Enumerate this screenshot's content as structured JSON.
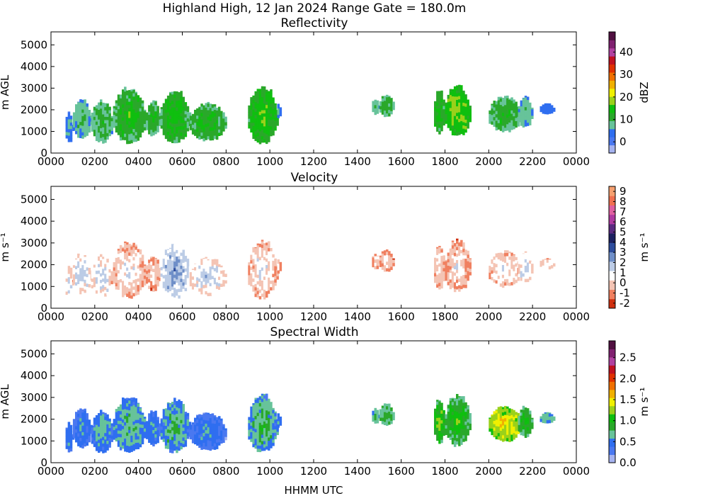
{
  "figure": {
    "title": "Highland High, 12 Jan 2024 Range Gate = 180.0m",
    "xlabel": "HHMM UTC"
  },
  "chart_data": [
    {
      "type": "heatmap",
      "title": "Reflectivity",
      "ylabel": "m AGL",
      "xticks": [
        "0000",
        "0200",
        "0400",
        "0600",
        "0800",
        "1000",
        "1200",
        "1400",
        "1600",
        "1800",
        "2000",
        "2200",
        "0000"
      ],
      "yticks": [
        "0",
        "1000",
        "2000",
        "3000",
        "4000",
        "5000"
      ],
      "ylim": [
        0,
        5600
      ],
      "colorbar": {
        "label": "dBZ",
        "range": [
          -5,
          49
        ],
        "ticks": [
          "0",
          "10",
          "20",
          "30",
          "40"
        ],
        "tick_values": [
          0,
          10,
          20,
          30,
          40
        ],
        "colors": [
          "#a6b3f0",
          "#4a78f0",
          "#2f6ef0",
          "#67c39a",
          "#2aa82a",
          "#0fbf0f",
          "#9ad11a",
          "#f0f000",
          "#f0b000",
          "#f07000",
          "#e03000",
          "#c01020",
          "#b040a0",
          "#802070",
          "#501040"
        ]
      },
      "cells": [
        {
          "t0": 40,
          "t1": 100,
          "h0": 500,
          "h1": 1900,
          "v": 4,
          "d": 7
        },
        {
          "t0": 100,
          "t1": 150,
          "h0": 700,
          "h1": 2500,
          "v": 6,
          "d": 8
        },
        {
          "t0": 150,
          "t1": 250,
          "h0": 500,
          "h1": 2400,
          "v": 8,
          "d": 9
        },
        {
          "t0": 250,
          "t1": 380,
          "h0": 500,
          "h1": 3000,
          "v": 10,
          "d": 10
        },
        {
          "t0": 380,
          "t1": 460,
          "h0": 800,
          "h1": 2400,
          "v": 9,
          "d": 9
        },
        {
          "t0": 460,
          "t1": 620,
          "h0": 500,
          "h1": 2900,
          "v": 11,
          "d": 10
        },
        {
          "t0": 620,
          "t1": 760,
          "h0": 600,
          "h1": 2300,
          "v": 10,
          "d": 9
        },
        {
          "t0": 860,
          "t1": 980,
          "h0": 500,
          "h1": 3100,
          "v": 12,
          "d": 10
        },
        {
          "t0": 980,
          "t1": 1030,
          "h0": 1600,
          "h1": 2300,
          "v": 4,
          "d": 5
        },
        {
          "t0": 1440,
          "t1": 1460,
          "h0": 1800,
          "h1": 2500,
          "v": 7,
          "d": 4
        },
        {
          "t0": 1500,
          "t1": 1540,
          "h0": 1700,
          "h1": 2700,
          "v": 9,
          "d": 5
        },
        {
          "t0": 1580,
          "t1": 1610,
          "h0": 1600,
          "h1": 2700,
          "v": 9,
          "d": 5
        },
        {
          "t0": 1730,
          "t1": 1800,
          "h0": 900,
          "h1": 2900,
          "v": 11,
          "d": 9
        },
        {
          "t0": 1800,
          "t1": 1910,
          "h0": 800,
          "h1": 3100,
          "v": 14,
          "d": 10
        },
        {
          "t0": 2000,
          "t1": 2090,
          "h0": 1000,
          "h1": 2600,
          "v": 9,
          "d": 9
        },
        {
          "t0": 2120,
          "t1": 2200,
          "h0": 1200,
          "h1": 2600,
          "v": 6,
          "d": 6
        },
        {
          "t0": 2220,
          "t1": 2260,
          "h0": 1800,
          "h1": 2300,
          "v": 4,
          "d": 3
        }
      ]
    },
    {
      "type": "heatmap",
      "title": "Velocity",
      "ylabel": "m s⁻¹",
      "xticks": [
        "0000",
        "0200",
        "0400",
        "0600",
        "0800",
        "1000",
        "1200",
        "1400",
        "1600",
        "1800",
        "2000",
        "2200",
        "0000"
      ],
      "yticks": [
        "0",
        "1000",
        "2000",
        "3000",
        "4000",
        "5000"
      ],
      "ylim": [
        0,
        5600
      ],
      "colorbar": {
        "label": "m s⁻¹",
        "range": [
          -2.5,
          9.5
        ],
        "ticks": [
          "-2",
          "-1",
          "0",
          "1",
          "2",
          "3",
          "4",
          "5",
          "6",
          "7",
          "8",
          "9"
        ],
        "tick_values": [
          -2,
          -1,
          0,
          1,
          2,
          3,
          4,
          5,
          6,
          7,
          8,
          9
        ],
        "colors": [
          "#d03010",
          "#f08060",
          "#f4c4b4",
          "#ffffff",
          "#bccce6",
          "#6f8fc8",
          "#2d4c9c",
          "#1c2060",
          "#5a2a80",
          "#b03aa0",
          "#e060a0",
          "#f07050",
          "#f5a070"
        ]
      },
      "cells": [
        {
          "t0": 40,
          "t1": 100,
          "h0": 500,
          "h1": 1900,
          "v": 0.3,
          "d": 3
        },
        {
          "t0": 100,
          "t1": 150,
          "h0": 700,
          "h1": 2500,
          "v": 0.5,
          "d": 3
        },
        {
          "t0": 150,
          "t1": 250,
          "h0": 500,
          "h1": 2400,
          "v": 0.2,
          "d": 3
        },
        {
          "t0": 250,
          "t1": 380,
          "h0": 500,
          "h1": 3000,
          "v": -0.4,
          "d": 3
        },
        {
          "t0": 380,
          "t1": 460,
          "h0": 800,
          "h1": 2400,
          "v": -0.8,
          "d": 3
        },
        {
          "t0": 460,
          "t1": 620,
          "h0": 500,
          "h1": 2900,
          "v": 1.2,
          "d": 3
        },
        {
          "t0": 620,
          "t1": 760,
          "h0": 600,
          "h1": 2300,
          "v": 0.2,
          "d": 3
        },
        {
          "t0": 860,
          "t1": 980,
          "h0": 500,
          "h1": 3100,
          "v": -0.3,
          "d": 3
        },
        {
          "t0": 980,
          "t1": 1030,
          "h0": 1600,
          "h1": 2300,
          "v": -0.6,
          "d": 3
        },
        {
          "t0": 1440,
          "t1": 1460,
          "h0": 1800,
          "h1": 2500,
          "v": -0.6,
          "d": 3
        },
        {
          "t0": 1500,
          "t1": 1540,
          "h0": 1700,
          "h1": 2700,
          "v": -0.8,
          "d": 3
        },
        {
          "t0": 1580,
          "t1": 1610,
          "h0": 1600,
          "h1": 2700,
          "v": -0.7,
          "d": 3
        },
        {
          "t0": 1730,
          "t1": 1800,
          "h0": 900,
          "h1": 2900,
          "v": -0.5,
          "d": 3
        },
        {
          "t0": 1800,
          "t1": 1910,
          "h0": 800,
          "h1": 3100,
          "v": -0.6,
          "d": 3
        },
        {
          "t0": 2000,
          "t1": 2090,
          "h0": 1000,
          "h1": 2600,
          "v": -0.3,
          "d": 3
        },
        {
          "t0": 2120,
          "t1": 2200,
          "h0": 1200,
          "h1": 2600,
          "v": 0.2,
          "d": 3
        },
        {
          "t0": 2220,
          "t1": 2260,
          "h0": 1800,
          "h1": 2300,
          "v": 0.1,
          "d": 3
        }
      ]
    },
    {
      "type": "heatmap",
      "title": "Spectral Width",
      "ylabel": "m AGL",
      "xticks": [
        "0000",
        "0200",
        "0400",
        "0600",
        "0800",
        "1000",
        "1200",
        "1400",
        "1600",
        "1800",
        "2000",
        "2200",
        "0000"
      ],
      "yticks": [
        "0",
        "1000",
        "2000",
        "3000",
        "4000",
        "5000"
      ],
      "ylim": [
        0,
        5600
      ],
      "colorbar": {
        "label": "m s⁻¹",
        "range": [
          0,
          2.9
        ],
        "ticks": [
          "0.0",
          "0.5",
          "1.0",
          "1.5",
          "2.0",
          "2.5"
        ],
        "tick_values": [
          0,
          0.5,
          1.0,
          1.5,
          2.0,
          2.5
        ],
        "colors": [
          "#a6b3f0",
          "#4a78f0",
          "#2f6ef0",
          "#67c39a",
          "#2aa82a",
          "#0fbf0f",
          "#9ad11a",
          "#f0f000",
          "#f0b000",
          "#f07000",
          "#e03000",
          "#c01020",
          "#b040a0",
          "#802070",
          "#501040"
        ]
      },
      "cells": [
        {
          "t0": 40,
          "t1": 100,
          "h0": 500,
          "h1": 1900,
          "v": 0.4,
          "d": 0.5
        },
        {
          "t0": 100,
          "t1": 150,
          "h0": 700,
          "h1": 2500,
          "v": 0.35,
          "d": 0.5
        },
        {
          "t0": 150,
          "t1": 250,
          "h0": 500,
          "h1": 2400,
          "v": 0.45,
          "d": 0.6
        },
        {
          "t0": 250,
          "t1": 380,
          "h0": 500,
          "h1": 3000,
          "v": 0.5,
          "d": 0.6
        },
        {
          "t0": 380,
          "t1": 460,
          "h0": 800,
          "h1": 2400,
          "v": 0.4,
          "d": 0.5
        },
        {
          "t0": 460,
          "t1": 620,
          "h0": 500,
          "h1": 2900,
          "v": 0.5,
          "d": 0.7
        },
        {
          "t0": 620,
          "t1": 760,
          "h0": 600,
          "h1": 2300,
          "v": 0.35,
          "d": 0.5
        },
        {
          "t0": 860,
          "t1": 980,
          "h0": 500,
          "h1": 3100,
          "v": 0.55,
          "d": 0.7
        },
        {
          "t0": 980,
          "t1": 1030,
          "h0": 1600,
          "h1": 2300,
          "v": 0.5,
          "d": 0.4
        },
        {
          "t0": 1440,
          "t1": 1460,
          "h0": 1800,
          "h1": 2500,
          "v": 0.6,
          "d": 0.4
        },
        {
          "t0": 1500,
          "t1": 1540,
          "h0": 1700,
          "h1": 2700,
          "v": 0.7,
          "d": 0.4
        },
        {
          "t0": 1580,
          "t1": 1610,
          "h0": 1600,
          "h1": 2700,
          "v": 0.8,
          "d": 0.5
        },
        {
          "t0": 1730,
          "t1": 1800,
          "h0": 900,
          "h1": 2900,
          "v": 0.9,
          "d": 0.6
        },
        {
          "t0": 1800,
          "t1": 1910,
          "h0": 800,
          "h1": 3100,
          "v": 0.8,
          "d": 0.6
        },
        {
          "t0": 2000,
          "t1": 2090,
          "h0": 1000,
          "h1": 2600,
          "v": 1.2,
          "d": 0.7
        },
        {
          "t0": 2120,
          "t1": 2200,
          "h0": 1200,
          "h1": 2600,
          "v": 0.8,
          "d": 0.5
        },
        {
          "t0": 2220,
          "t1": 2260,
          "h0": 1800,
          "h1": 2300,
          "v": 0.6,
          "d": 0.3
        }
      ]
    }
  ]
}
